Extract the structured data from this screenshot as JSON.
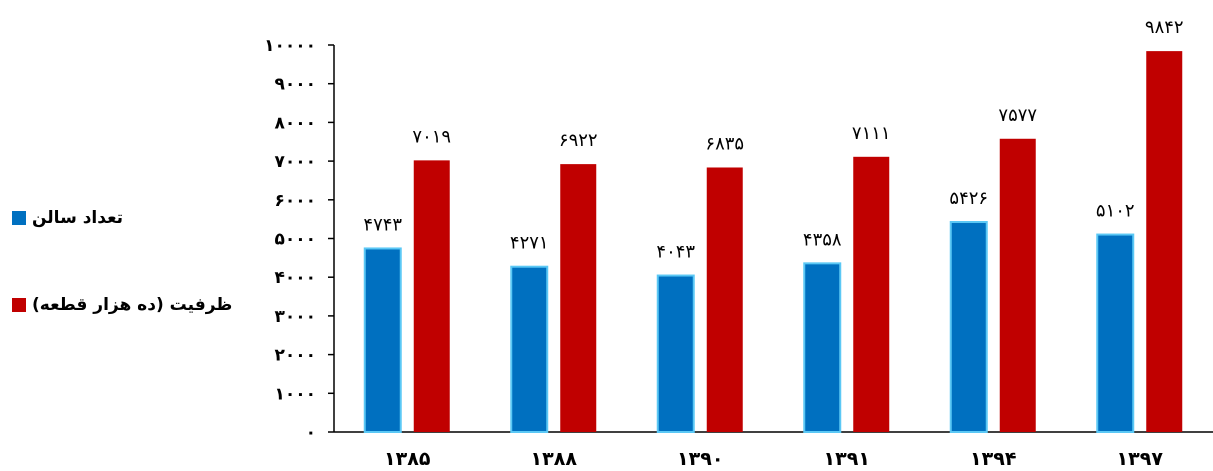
{
  "chart_data": {
    "type": "bar",
    "categories": [
      "۱۳۸۵",
      "۱۳۸۸",
      "۱۳۹۰",
      "۱۳۹۱",
      "۱۳۹۴",
      "۱۳۹۷"
    ],
    "series": [
      {
        "name": "تعداد سالن",
        "values": [
          4743,
          4271,
          4043,
          4358,
          5426,
          5102
        ],
        "labels": [
          "۴۷۴۳",
          "۴۲۷۱",
          "۴۰۴۳",
          "۴۳۵۸",
          "۵۴۲۶",
          "۵۱۰۲"
        ],
        "color": "#0070C0"
      },
      {
        "name": "ظرفیت (ده هزار قطعه)",
        "values": [
          7019,
          6922,
          6835,
          7111,
          7577,
          9842
        ],
        "labels": [
          "۷۰۱۹",
          "۶۹۲۲",
          "۶۸۳۵",
          "۷۱۱۱",
          "۷۵۷۷",
          "۹۸۴۲"
        ],
        "color": "#C00000"
      }
    ],
    "ylim": [
      0,
      10000
    ],
    "yticks": [
      0,
      1000,
      2000,
      3000,
      4000,
      5000,
      6000,
      7000,
      8000,
      9000,
      10000
    ],
    "ytick_labels": [
      "۰",
      "۱۰۰۰",
      "۲۰۰۰",
      "۳۰۰۰",
      "۴۰۰۰",
      "۵۰۰۰",
      "۶۰۰۰",
      "۷۰۰۰",
      "۸۰۰۰",
      "۹۰۰۰",
      "۱۰۰۰۰"
    ],
    "title": "",
    "xlabel": "",
    "ylabel": "",
    "grid": false,
    "legend_position": "left"
  }
}
